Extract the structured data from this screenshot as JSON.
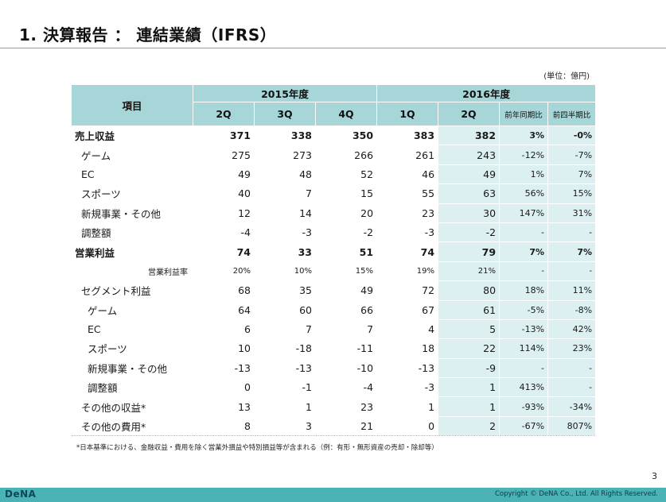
{
  "title": "1. 決算報告 ： 連結業績（IFRS）",
  "unit_note": "(単位：億円)",
  "table": {
    "header": {
      "item_label": "項目",
      "year_2015": "2015年度",
      "year_2016": "2016年度",
      "quarters_2015": [
        "2Q",
        "3Q",
        "4Q"
      ],
      "quarters_2016": [
        "1Q",
        "2Q"
      ],
      "yoy_label": "前年同期比",
      "qoq_label": "前四半期比"
    },
    "rows": [
      {
        "label": "売上収益",
        "style": "bold",
        "values": [
          "371",
          "338",
          "350",
          "383",
          "382"
        ],
        "yoy": "3%",
        "qoq": "-0%"
      },
      {
        "label": "ゲーム",
        "style": "ind1",
        "values": [
          "275",
          "273",
          "266",
          "261",
          "243"
        ],
        "yoy": "-12%",
        "qoq": "-7%"
      },
      {
        "label": "EC",
        "style": "ind1",
        "values": [
          "49",
          "48",
          "52",
          "46",
          "49"
        ],
        "yoy": "1%",
        "qoq": "7%"
      },
      {
        "label": "スポーツ",
        "style": "ind1",
        "values": [
          "40",
          "7",
          "15",
          "55",
          "63"
        ],
        "yoy": "56%",
        "qoq": "15%"
      },
      {
        "label": "新規事業・その他",
        "style": "ind1",
        "values": [
          "12",
          "14",
          "20",
          "23",
          "30"
        ],
        "yoy": "147%",
        "qoq": "31%"
      },
      {
        "label": "調整額",
        "style": "ind1",
        "values": [
          "-4",
          "-3",
          "-2",
          "-3",
          "-2"
        ],
        "yoy": "-",
        "qoq": "-"
      },
      {
        "label": "営業利益",
        "style": "bold",
        "values": [
          "74",
          "33",
          "51",
          "74",
          "79"
        ],
        "yoy": "7%",
        "qoq": "7%"
      },
      {
        "label": "営業利益率",
        "style": "ratio",
        "values": [
          "20%",
          "10%",
          "15%",
          "19%",
          "21%"
        ],
        "yoy": "-",
        "qoq": "-"
      },
      {
        "label": "セグメント利益",
        "style": "ind1",
        "values": [
          "68",
          "35",
          "49",
          "72",
          "80"
        ],
        "yoy": "18%",
        "qoq": "11%"
      },
      {
        "label": "ゲーム",
        "style": "ind2",
        "values": [
          "64",
          "60",
          "66",
          "67",
          "61"
        ],
        "yoy": "-5%",
        "qoq": "-8%"
      },
      {
        "label": "EC",
        "style": "ind2",
        "values": [
          "6",
          "7",
          "7",
          "4",
          "5"
        ],
        "yoy": "-13%",
        "qoq": "42%"
      },
      {
        "label": "スポーツ",
        "style": "ind2",
        "values": [
          "10",
          "-18",
          "-11",
          "18",
          "22"
        ],
        "yoy": "114%",
        "qoq": "23%"
      },
      {
        "label": "新規事業・その他",
        "style": "ind2",
        "values": [
          "-13",
          "-13",
          "-10",
          "-13",
          "-9"
        ],
        "yoy": "-",
        "qoq": "-"
      },
      {
        "label": "調整額",
        "style": "ind2",
        "values": [
          "0",
          "-1",
          "-4",
          "-3",
          "1"
        ],
        "yoy": "413%",
        "qoq": "-"
      },
      {
        "label": "その他の収益*",
        "style": "ind1",
        "values": [
          "13",
          "1",
          "23",
          "1",
          "1"
        ],
        "yoy": "-93%",
        "qoq": "-34%"
      },
      {
        "label": "その他の費用*",
        "style": "ind1",
        "values": [
          "8",
          "3",
          "21",
          "0",
          "2"
        ],
        "yoy": "-67%",
        "qoq": "807%"
      }
    ]
  },
  "footnote": "*日本基準における、金融収益・費用を除く営業外損益や特別損益等が含まれる（例：有形・無形資産の売却・除却等）",
  "page_number": "3",
  "logo_text": "DeNA",
  "copyright": "Copyright © DeNA Co., Ltd. All Rights Reserved.",
  "colors": {
    "header_bg": "#a6d6d8",
    "highlight_col_bg": "#dceff1",
    "footer_bg": "#4bb2b6"
  }
}
